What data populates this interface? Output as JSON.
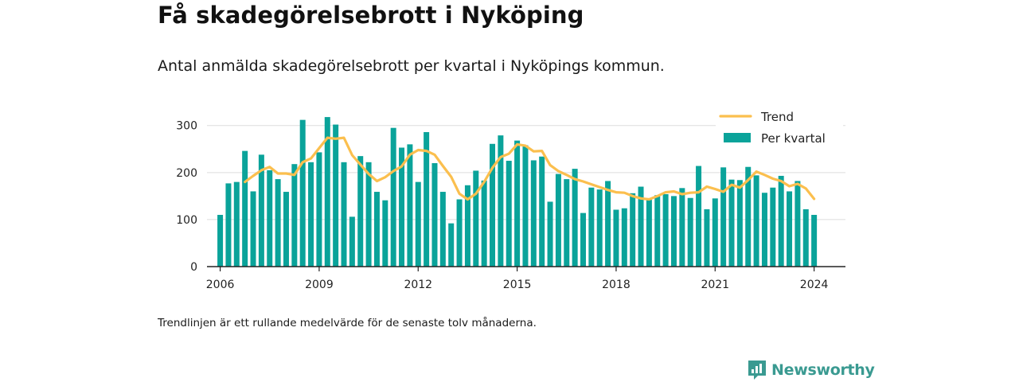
{
  "title": "Få skadegörelsebrott i Nyköping",
  "subtitle": "Antal anmälda skadegörelsebrott per kvartal i Nyköpings kommun.",
  "note": "Trendlinjen är ett rullande medelvärde för de senaste tolv månaderna.",
  "brand": {
    "name": "Newsworthy",
    "icon": "bar-chart-speech-bubble-icon",
    "color": "#3a9a91"
  },
  "chart_data": {
    "type": "bar",
    "x_ticks": [
      "2006",
      "2009",
      "2012",
      "2015",
      "2018",
      "2021",
      "2024"
    ],
    "y_ticks": [
      "0",
      "100",
      "200",
      "300"
    ],
    "ylim": [
      0,
      330
    ],
    "xlim": [
      2005.6,
      2024.95
    ],
    "grid": true,
    "legend_position": "top-right",
    "colors": {
      "bars": "#0aa39a",
      "trend": "#fbbf4e",
      "grid": "#dddddd",
      "axis": "#222222"
    },
    "series": [
      {
        "name": "Per kvartal",
        "kind": "bar",
        "x": [
          2006.0,
          2006.25,
          2006.5,
          2006.75,
          2007.0,
          2007.25,
          2007.5,
          2007.75,
          2008.0,
          2008.25,
          2008.5,
          2008.75,
          2009.0,
          2009.25,
          2009.5,
          2009.75,
          2010.0,
          2010.25,
          2010.5,
          2010.75,
          2011.0,
          2011.25,
          2011.5,
          2011.75,
          2012.0,
          2012.25,
          2012.5,
          2012.75,
          2013.0,
          2013.25,
          2013.5,
          2013.75,
          2014.0,
          2014.25,
          2014.5,
          2014.75,
          2015.0,
          2015.25,
          2015.5,
          2015.75,
          2016.0,
          2016.25,
          2016.5,
          2016.75,
          2017.0,
          2017.25,
          2017.5,
          2017.75,
          2018.0,
          2018.25,
          2018.5,
          2018.75,
          2019.0,
          2019.25,
          2019.5,
          2019.75,
          2020.0,
          2020.25,
          2020.5,
          2020.75,
          2021.0,
          2021.25,
          2021.5,
          2021.75,
          2022.0,
          2022.25,
          2022.5,
          2022.75,
          2023.0,
          2023.25,
          2023.5,
          2023.75,
          2024.0
        ],
        "values": [
          110,
          177,
          180,
          246,
          160,
          238,
          205,
          186,
          159,
          218,
          312,
          222,
          243,
          318,
          302,
          222,
          106,
          235,
          222,
          159,
          141,
          295,
          253,
          260,
          180,
          286,
          220,
          159,
          92,
          143,
          173,
          204,
          183,
          261,
          279,
          225,
          268,
          258,
          226,
          234,
          138,
          197,
          186,
          208,
          114,
          168,
          164,
          182,
          121,
          124,
          156,
          170,
          142,
          152,
          154,
          150,
          167,
          146,
          214,
          122,
          145,
          211,
          185,
          184,
          212,
          194,
          157,
          168,
          193,
          160,
          182,
          122,
          110
        ]
      },
      {
        "name": "Trend",
        "kind": "line",
        "x": [
          2006.75,
          2007.0,
          2007.25,
          2007.5,
          2007.75,
          2008.0,
          2008.25,
          2008.5,
          2008.75,
          2009.0,
          2009.25,
          2009.5,
          2009.75,
          2010.0,
          2010.25,
          2010.5,
          2010.75,
          2011.0,
          2011.25,
          2011.5,
          2011.75,
          2012.0,
          2012.25,
          2012.5,
          2012.75,
          2013.0,
          2013.25,
          2013.5,
          2013.75,
          2014.0,
          2014.25,
          2014.5,
          2014.75,
          2015.0,
          2015.25,
          2015.5,
          2015.75,
          2016.0,
          2016.25,
          2016.5,
          2016.75,
          2017.0,
          2017.25,
          2017.5,
          2017.75,
          2018.0,
          2018.25,
          2018.5,
          2018.75,
          2019.0,
          2019.25,
          2019.5,
          2019.75,
          2020.0,
          2020.25,
          2020.5,
          2020.75,
          2021.0,
          2021.25,
          2021.5,
          2021.75,
          2022.0,
          2022.25,
          2022.5,
          2022.75,
          2023.0,
          2023.25,
          2023.5,
          2023.75,
          2024.0
        ],
        "values": [
          180,
          193,
          205,
          212,
          198,
          198,
          195,
          222,
          230,
          252,
          274,
          272,
          274,
          237,
          217,
          197,
          182,
          190,
          203,
          213,
          238,
          248,
          246,
          238,
          214,
          191,
          155,
          143,
          155,
          180,
          210,
          233,
          240,
          260,
          257,
          245,
          246,
          216,
          203,
          195,
          186,
          181,
          175,
          169,
          163,
          158,
          157,
          150,
          145,
          143,
          150,
          158,
          160,
          154,
          157,
          158,
          170,
          165,
          159,
          174,
          168,
          184,
          202,
          195,
          187,
          182,
          171,
          176,
          166,
          144
        ]
      }
    ]
  }
}
